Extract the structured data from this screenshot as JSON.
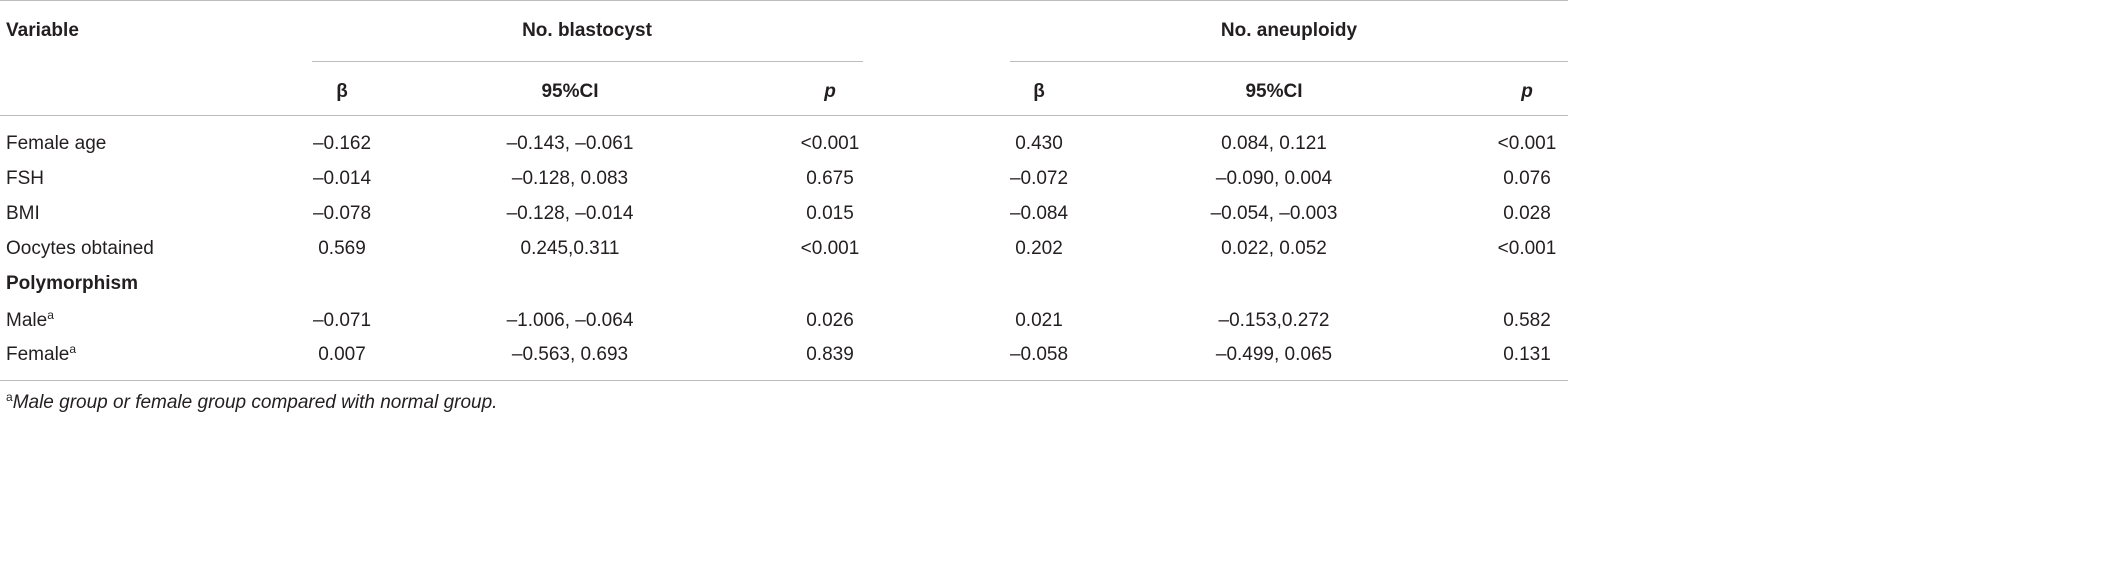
{
  "table": {
    "header": {
      "variable": "Variable",
      "group1": "No. blastocyst",
      "group2": "No. aneuploidy",
      "beta": "β",
      "ci": "95%CI",
      "p": "p"
    },
    "rows": [
      {
        "label": "Female age",
        "b1": "–0.162",
        "ci1": "–0.143, –0.061",
        "p1": "<0.001",
        "b2": "0.430",
        "ci2": "0.084, 0.121",
        "p2": "<0.001"
      },
      {
        "label": "FSH",
        "b1": "–0.014",
        "ci1": "–0.128, 0.083",
        "p1": "0.675",
        "b2": "–0.072",
        "ci2": "–0.090, 0.004",
        "p2": "0.076"
      },
      {
        "label": "BMI",
        "b1": "–0.078",
        "ci1": "–0.128, –0.014",
        "p1": "0.015",
        "b2": "–0.084",
        "ci2": "–0.054, –0.003",
        "p2": "0.028"
      },
      {
        "label": "Oocytes obtained",
        "b1": "0.569",
        "ci1": "0.245,0.311",
        "p1": "<0.001",
        "b2": "0.202",
        "ci2": "0.022, 0.052",
        "p2": "<0.001"
      }
    ],
    "section_label": "Polymorphism",
    "sub_rows": [
      {
        "label": "Male",
        "sup": "a",
        "b1": "–0.071",
        "ci1": "–1.006, –0.064",
        "p1": "0.026",
        "b2": "0.021",
        "ci2": "–0.153,0.272",
        "p2": "0.582"
      },
      {
        "label": "Female",
        "sup": "a",
        "b1": "0.007",
        "ci1": "–0.563, 0.693",
        "p1": "0.839",
        "b2": "–0.058",
        "ci2": "–0.499, 0.065",
        "p2": "0.131"
      }
    ],
    "footnote": {
      "marker": "a",
      "text": "Male group or female group compared with normal group."
    }
  }
}
